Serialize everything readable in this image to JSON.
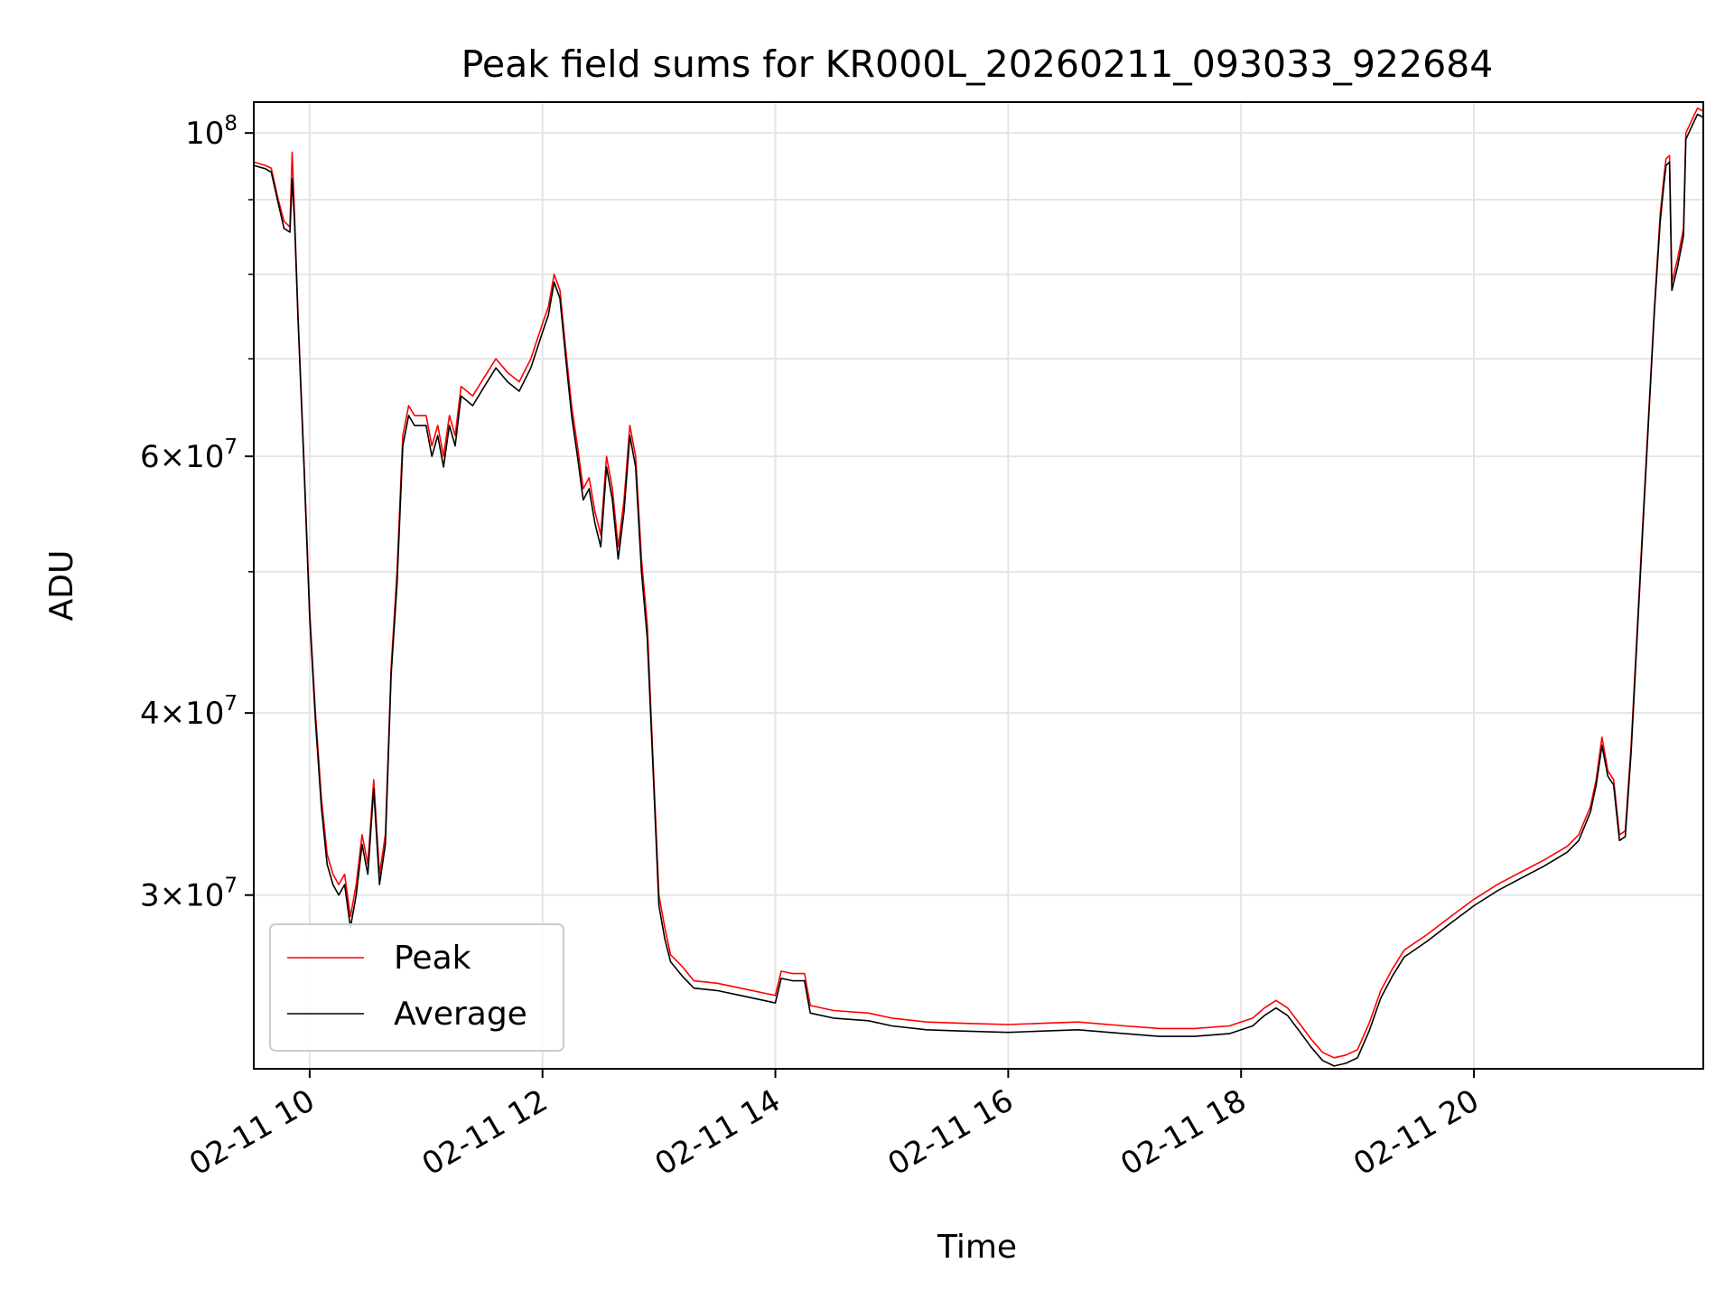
{
  "chart_data": {
    "type": "line",
    "title": "Peak field sums for KR000L_20260211_093033_922684",
    "xlabel": "Time",
    "ylabel": "ADU",
    "yscale": "log",
    "xlim": [
      9.52,
      21.97
    ],
    "ylim": [
      22800000,
      105000000
    ],
    "grid": true,
    "legend_position": "lower-left",
    "x_ticks": [
      {
        "value": 10,
        "label": "02-11 10"
      },
      {
        "value": 12,
        "label": "02-11 12"
      },
      {
        "value": 14,
        "label": "02-11 14"
      },
      {
        "value": 16,
        "label": "02-11 16"
      },
      {
        "value": 18,
        "label": "02-11 18"
      },
      {
        "value": 20,
        "label": "02-11 20"
      }
    ],
    "y_major_ticks": [
      {
        "value": 100000000,
        "base": "10",
        "exp": "8",
        "mant": ""
      },
      {
        "value": 60000000,
        "base": "10",
        "exp": "7",
        "mant": "6×"
      },
      {
        "value": 40000000,
        "base": "10",
        "exp": "7",
        "mant": "4×"
      },
      {
        "value": 30000000,
        "base": "10",
        "exp": "7",
        "mant": "3×"
      }
    ],
    "y_minor_gridlines": [
      90000000,
      80000000,
      70000000,
      50000000
    ],
    "series": [
      {
        "name": "Peak",
        "color": "#ff0000",
        "points": [
          [
            9.52,
            95500000
          ],
          [
            9.62,
            95000000
          ],
          [
            9.67,
            94600000
          ],
          [
            9.73,
            90000000
          ],
          [
            9.78,
            87000000
          ],
          [
            9.83,
            86200000
          ],
          [
            9.85,
            97000000
          ],
          [
            9.87,
            88000000
          ],
          [
            9.9,
            75000000
          ],
          [
            9.95,
            60000000
          ],
          [
            10.0,
            47000000
          ],
          [
            10.05,
            40000000
          ],
          [
            10.1,
            35000000
          ],
          [
            10.15,
            32000000
          ],
          [
            10.2,
            31000000
          ],
          [
            10.25,
            30500000
          ],
          [
            10.3,
            31000000
          ],
          [
            10.35,
            29000000
          ],
          [
            10.4,
            30500000
          ],
          [
            10.45,
            33000000
          ],
          [
            10.5,
            31500000
          ],
          [
            10.55,
            36000000
          ],
          [
            10.6,
            31000000
          ],
          [
            10.65,
            33000000
          ],
          [
            10.7,
            43000000
          ],
          [
            10.75,
            50000000
          ],
          [
            10.8,
            62000000
          ],
          [
            10.85,
            65000000
          ],
          [
            10.9,
            64000000
          ],
          [
            11.0,
            64000000
          ],
          [
            11.05,
            61000000
          ],
          [
            11.1,
            63000000
          ],
          [
            11.15,
            60000000
          ],
          [
            11.2,
            64000000
          ],
          [
            11.25,
            62000000
          ],
          [
            11.3,
            67000000
          ],
          [
            11.4,
            66000000
          ],
          [
            11.5,
            68000000
          ],
          [
            11.6,
            70000000
          ],
          [
            11.7,
            68500000
          ],
          [
            11.8,
            67500000
          ],
          [
            11.9,
            70000000
          ],
          [
            12.0,
            74000000
          ],
          [
            12.05,
            76000000
          ],
          [
            12.1,
            80000000
          ],
          [
            12.15,
            78000000
          ],
          [
            12.2,
            71000000
          ],
          [
            12.25,
            65000000
          ],
          [
            12.3,
            61000000
          ],
          [
            12.35,
            57000000
          ],
          [
            12.4,
            58000000
          ],
          [
            12.45,
            55000000
          ],
          [
            12.5,
            53000000
          ],
          [
            12.55,
            60000000
          ],
          [
            12.6,
            57000000
          ],
          [
            12.65,
            52000000
          ],
          [
            12.7,
            56000000
          ],
          [
            12.75,
            63000000
          ],
          [
            12.8,
            60000000
          ],
          [
            12.85,
            51000000
          ],
          [
            12.9,
            46000000
          ],
          [
            12.95,
            37000000
          ],
          [
            13.0,
            30000000
          ],
          [
            13.05,
            28500000
          ],
          [
            13.1,
            27300000
          ],
          [
            13.2,
            26800000
          ],
          [
            13.3,
            26200000
          ],
          [
            13.5,
            26100000
          ],
          [
            13.7,
            25900000
          ],
          [
            13.9,
            25700000
          ],
          [
            14.0,
            25600000
          ],
          [
            14.05,
            26600000
          ],
          [
            14.15,
            26500000
          ],
          [
            14.25,
            26500000
          ],
          [
            14.3,
            25200000
          ],
          [
            14.5,
            25000000
          ],
          [
            14.8,
            24900000
          ],
          [
            15.0,
            24700000
          ],
          [
            15.3,
            24550000
          ],
          [
            15.6,
            24500000
          ],
          [
            16.0,
            24450000
          ],
          [
            16.3,
            24500000
          ],
          [
            16.6,
            24550000
          ],
          [
            17.0,
            24400000
          ],
          [
            17.3,
            24300000
          ],
          [
            17.6,
            24300000
          ],
          [
            17.9,
            24400000
          ],
          [
            18.1,
            24700000
          ],
          [
            18.2,
            25100000
          ],
          [
            18.3,
            25400000
          ],
          [
            18.4,
            25100000
          ],
          [
            18.5,
            24500000
          ],
          [
            18.6,
            23900000
          ],
          [
            18.7,
            23400000
          ],
          [
            18.8,
            23200000
          ],
          [
            18.9,
            23300000
          ],
          [
            19.0,
            23500000
          ],
          [
            19.1,
            24500000
          ],
          [
            19.2,
            25800000
          ],
          [
            19.3,
            26700000
          ],
          [
            19.4,
            27500000
          ],
          [
            19.6,
            28200000
          ],
          [
            19.8,
            29000000
          ],
          [
            20.0,
            29800000
          ],
          [
            20.2,
            30500000
          ],
          [
            20.4,
            31100000
          ],
          [
            20.6,
            31700000
          ],
          [
            20.8,
            32400000
          ],
          [
            20.9,
            33000000
          ],
          [
            21.0,
            34500000
          ],
          [
            21.05,
            36000000
          ],
          [
            21.1,
            38500000
          ],
          [
            21.15,
            36500000
          ],
          [
            21.2,
            36000000
          ],
          [
            21.25,
            33000000
          ],
          [
            21.3,
            33200000
          ],
          [
            21.35,
            38000000
          ],
          [
            21.45,
            54000000
          ],
          [
            21.55,
            76000000
          ],
          [
            21.6,
            88000000
          ],
          [
            21.63,
            93000000
          ],
          [
            21.65,
            96000000
          ],
          [
            21.68,
            96500000
          ],
          [
            21.7,
            79000000
          ],
          [
            21.75,
            82000000
          ],
          [
            21.8,
            86000000
          ],
          [
            21.82,
            100000000
          ],
          [
            21.87,
            102000000
          ],
          [
            21.92,
            104000000
          ],
          [
            21.97,
            103500000
          ]
        ]
      },
      {
        "name": "Average",
        "color": "#000000",
        "points": [
          [
            9.52,
            95000000
          ],
          [
            9.62,
            94500000
          ],
          [
            9.67,
            94000000
          ],
          [
            9.73,
            89500000
          ],
          [
            9.78,
            86000000
          ],
          [
            9.83,
            85500000
          ],
          [
            9.85,
            93000000
          ],
          [
            9.87,
            87000000
          ],
          [
            9.9,
            74500000
          ],
          [
            9.95,
            59500000
          ],
          [
            10.0,
            46500000
          ],
          [
            10.05,
            39500000
          ],
          [
            10.1,
            34500000
          ],
          [
            10.15,
            31500000
          ],
          [
            10.2,
            30500000
          ],
          [
            10.25,
            30000000
          ],
          [
            10.3,
            30500000
          ],
          [
            10.35,
            28500000
          ],
          [
            10.4,
            30000000
          ],
          [
            10.45,
            32500000
          ],
          [
            10.5,
            31000000
          ],
          [
            10.55,
            35500000
          ],
          [
            10.6,
            30500000
          ],
          [
            10.65,
            32500000
          ],
          [
            10.7,
            42500000
          ],
          [
            10.75,
            49000000
          ],
          [
            10.8,
            61000000
          ],
          [
            10.85,
            64000000
          ],
          [
            10.9,
            63000000
          ],
          [
            11.0,
            63000000
          ],
          [
            11.05,
            60000000
          ],
          [
            11.1,
            62000000
          ],
          [
            11.15,
            59000000
          ],
          [
            11.2,
            63000000
          ],
          [
            11.25,
            61000000
          ],
          [
            11.3,
            66000000
          ],
          [
            11.4,
            65000000
          ],
          [
            11.5,
            67000000
          ],
          [
            11.6,
            69000000
          ],
          [
            11.7,
            67500000
          ],
          [
            11.8,
            66500000
          ],
          [
            11.9,
            69000000
          ],
          [
            12.0,
            73000000
          ],
          [
            12.05,
            75000000
          ],
          [
            12.1,
            79000000
          ],
          [
            12.15,
            77000000
          ],
          [
            12.2,
            70000000
          ],
          [
            12.25,
            64000000
          ],
          [
            12.3,
            60000000
          ],
          [
            12.35,
            56000000
          ],
          [
            12.4,
            57000000
          ],
          [
            12.45,
            54000000
          ],
          [
            12.5,
            52000000
          ],
          [
            12.55,
            59000000
          ],
          [
            12.6,
            56000000
          ],
          [
            12.65,
            51000000
          ],
          [
            12.7,
            55000000
          ],
          [
            12.75,
            62000000
          ],
          [
            12.8,
            59000000
          ],
          [
            12.85,
            50000000
          ],
          [
            12.9,
            45000000
          ],
          [
            12.95,
            36500000
          ],
          [
            13.0,
            29500000
          ],
          [
            13.05,
            28000000
          ],
          [
            13.1,
            27000000
          ],
          [
            13.2,
            26400000
          ],
          [
            13.3,
            25900000
          ],
          [
            13.5,
            25800000
          ],
          [
            13.7,
            25600000
          ],
          [
            13.9,
            25400000
          ],
          [
            14.0,
            25300000
          ],
          [
            14.05,
            26300000
          ],
          [
            14.15,
            26200000
          ],
          [
            14.25,
            26200000
          ],
          [
            14.3,
            24900000
          ],
          [
            14.5,
            24700000
          ],
          [
            14.8,
            24600000
          ],
          [
            15.0,
            24400000
          ],
          [
            15.3,
            24250000
          ],
          [
            15.6,
            24200000
          ],
          [
            16.0,
            24150000
          ],
          [
            16.3,
            24200000
          ],
          [
            16.6,
            24250000
          ],
          [
            17.0,
            24100000
          ],
          [
            17.3,
            24000000
          ],
          [
            17.6,
            24000000
          ],
          [
            17.9,
            24100000
          ],
          [
            18.1,
            24400000
          ],
          [
            18.2,
            24800000
          ],
          [
            18.3,
            25100000
          ],
          [
            18.4,
            24800000
          ],
          [
            18.5,
            24200000
          ],
          [
            18.6,
            23600000
          ],
          [
            18.7,
            23100000
          ],
          [
            18.8,
            22900000
          ],
          [
            18.9,
            23000000
          ],
          [
            19.0,
            23200000
          ],
          [
            19.1,
            24200000
          ],
          [
            19.2,
            25500000
          ],
          [
            19.3,
            26400000
          ],
          [
            19.4,
            27200000
          ],
          [
            19.6,
            27900000
          ],
          [
            19.8,
            28700000
          ],
          [
            20.0,
            29500000
          ],
          [
            20.2,
            30200000
          ],
          [
            20.4,
            30800000
          ],
          [
            20.6,
            31400000
          ],
          [
            20.8,
            32100000
          ],
          [
            20.9,
            32700000
          ],
          [
            21.0,
            34200000
          ],
          [
            21.05,
            35700000
          ],
          [
            21.1,
            38000000
          ],
          [
            21.15,
            36200000
          ],
          [
            21.2,
            35700000
          ],
          [
            21.25,
            32700000
          ],
          [
            21.3,
            32900000
          ],
          [
            21.35,
            37600000
          ],
          [
            21.45,
            53500000
          ],
          [
            21.55,
            75500000
          ],
          [
            21.6,
            87000000
          ],
          [
            21.63,
            92000000
          ],
          [
            21.65,
            95000000
          ],
          [
            21.68,
            95500000
          ],
          [
            21.7,
            78000000
          ],
          [
            21.75,
            81000000
          ],
          [
            21.8,
            85000000
          ],
          [
            21.82,
            99000000
          ],
          [
            21.87,
            101000000
          ],
          [
            21.92,
            103000000
          ],
          [
            21.97,
            102500000
          ]
        ]
      }
    ]
  }
}
